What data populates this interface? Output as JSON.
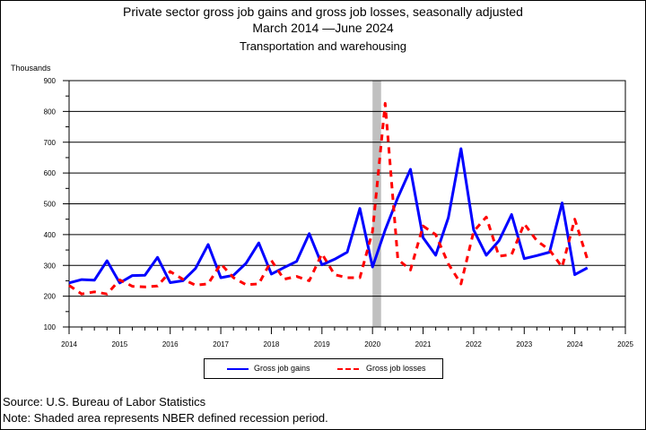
{
  "chart_data": {
    "type": "line",
    "title_line1": "Private sector gross job gains and gross job losses, seasonally adjusted",
    "title_line2": "March 2014 —June 2024",
    "subtitle": "Transportation and warehousing",
    "ylabel": "Thousands",
    "ylim": [
      100,
      900
    ],
    "yticks": [
      "100",
      "200",
      "300",
      "400",
      "500",
      "600",
      "700",
      "800",
      "900"
    ],
    "xlim": [
      2014,
      2025
    ],
    "xticks": [
      "2014",
      "2015",
      "2016",
      "2017",
      "2018",
      "2019",
      "2020",
      "2021",
      "2022",
      "2023",
      "2024",
      "2025"
    ],
    "grid": "horizontal",
    "recession": {
      "start": 2020.0,
      "end": 2020.17,
      "color": "#c0c0c0"
    },
    "legend_position": "bottom",
    "series": [
      {
        "name": "Gross job gains",
        "color": "#0000ff",
        "style": "solid",
        "x": [
          2014.0,
          2014.25,
          2014.5,
          2014.75,
          2015.0,
          2015.25,
          2015.5,
          2015.75,
          2016.0,
          2016.25,
          2016.5,
          2016.75,
          2017.0,
          2017.25,
          2017.5,
          2017.75,
          2018.0,
          2018.25,
          2018.5,
          2018.75,
          2019.0,
          2019.25,
          2019.5,
          2019.75,
          2020.0,
          2020.25,
          2020.5,
          2020.75,
          2021.0,
          2021.25,
          2021.5,
          2021.75,
          2022.0,
          2022.25,
          2022.5,
          2022.75,
          2023.0,
          2023.25,
          2023.5,
          2023.75,
          2024.0,
          2024.25
        ],
        "values": [
          243,
          254,
          252,
          315,
          243,
          267,
          268,
          326,
          244,
          250,
          290,
          368,
          260,
          268,
          307,
          373,
          272,
          293,
          313,
          403,
          302,
          320,
          343,
          485,
          295,
          415,
          520,
          612,
          390,
          333,
          455,
          679,
          415,
          333,
          380,
          465,
          322,
          332,
          343,
          503,
          270,
          292
        ]
      },
      {
        "name": "Gross job losses",
        "color": "#ff0000",
        "style": "dashed",
        "x": [
          2014.0,
          2014.25,
          2014.5,
          2014.75,
          2015.0,
          2015.25,
          2015.5,
          2015.75,
          2016.0,
          2016.25,
          2016.5,
          2016.75,
          2017.0,
          2017.25,
          2017.5,
          2017.75,
          2018.0,
          2018.25,
          2018.5,
          2018.75,
          2019.0,
          2019.25,
          2019.5,
          2019.75,
          2020.0,
          2020.25,
          2020.5,
          2020.75,
          2021.0,
          2021.25,
          2021.5,
          2021.75,
          2022.0,
          2022.25,
          2022.5,
          2022.75,
          2023.0,
          2023.25,
          2023.5,
          2023.75,
          2024.0,
          2024.25
        ],
        "values": [
          235,
          207,
          214,
          207,
          253,
          232,
          230,
          233,
          280,
          255,
          236,
          240,
          305,
          260,
          237,
          240,
          316,
          255,
          264,
          250,
          338,
          270,
          260,
          260,
          410,
          826,
          320,
          285,
          428,
          400,
          305,
          240,
          410,
          457,
          330,
          335,
          435,
          380,
          350,
          295,
          450,
          320
        ]
      }
    ]
  },
  "legend": {
    "gains_label": "Gross job gains",
    "losses_label": "Gross job losses"
  },
  "footer": {
    "source": "Source: U.S. Bureau of Labor Statistics",
    "note": "Note: Shaded area represents NBER defined recession period."
  }
}
